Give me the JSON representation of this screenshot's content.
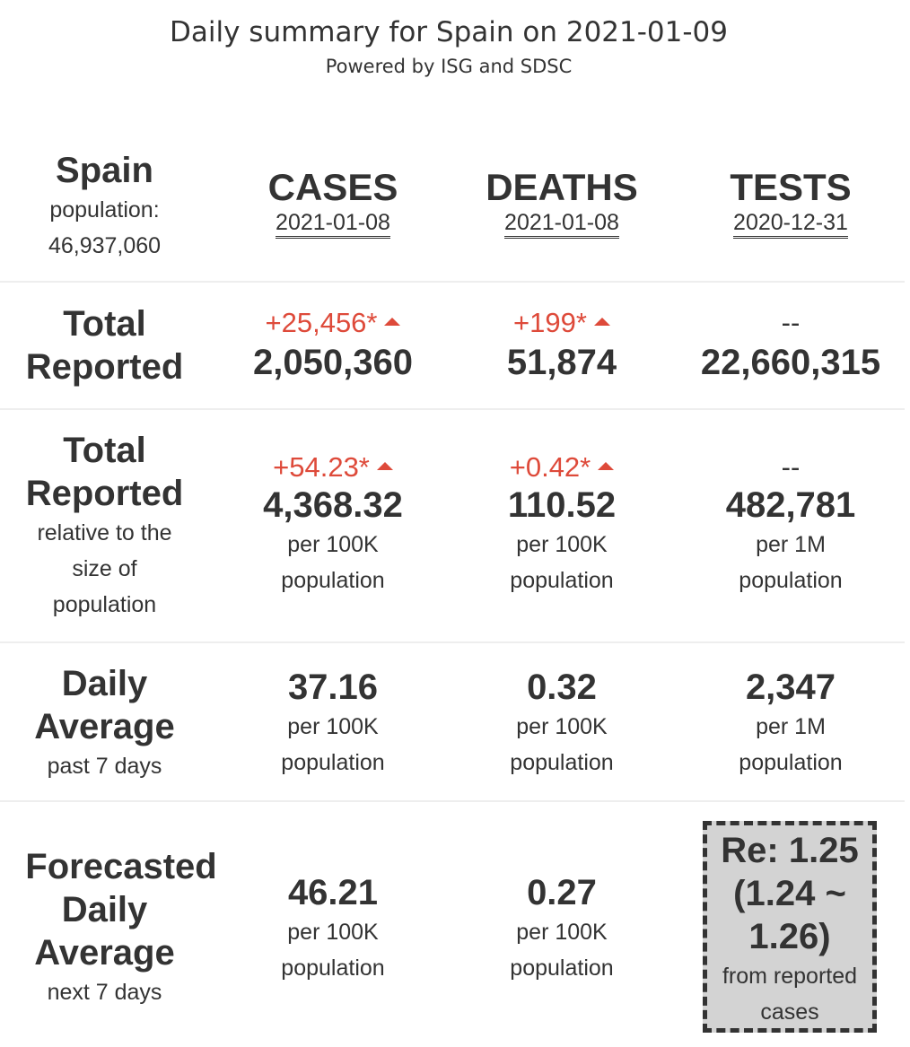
{
  "header": {
    "title": "Daily summary for Spain on 2021-01-09",
    "subtitle": "Powered by ISG and SDSC"
  },
  "region": {
    "name": "Spain",
    "population_label": "population:",
    "population": "46,937,060"
  },
  "columns": [
    {
      "name": "CASES",
      "date": "2021-01-08"
    },
    {
      "name": "DEATHS",
      "date": "2021-01-08"
    },
    {
      "name": "TESTS",
      "date": "2020-12-31"
    }
  ],
  "rows": {
    "total": {
      "label_1": "Total",
      "label_2": "Reported",
      "cases": {
        "delta": "+25,456*",
        "value": "2,050,360"
      },
      "deaths": {
        "delta": "+199*",
        "value": "51,874"
      },
      "tests": {
        "delta": "--",
        "value": "22,660,315"
      }
    },
    "relative": {
      "label_1": "Total",
      "label_2": "Reported",
      "sub_1": "relative to the",
      "sub_2": "size of",
      "sub_3": "population",
      "cases": {
        "delta": "+54.23*",
        "value": "4,368.32",
        "unit_1": "per 100K",
        "unit_2": "population"
      },
      "deaths": {
        "delta": "+0.42*",
        "value": "110.52",
        "unit_1": "per 100K",
        "unit_2": "population"
      },
      "tests": {
        "delta": "--",
        "value": "482,781",
        "unit_1": "per 1M",
        "unit_2": "population"
      }
    },
    "daily": {
      "label_1": "Daily",
      "label_2": "Average",
      "sub_1": "past 7 days",
      "cases": {
        "value": "37.16",
        "unit_1": "per 100K",
        "unit_2": "population"
      },
      "deaths": {
        "value": "0.32",
        "unit_1": "per 100K",
        "unit_2": "population"
      },
      "tests": {
        "value": "2,347",
        "unit_1": "per 1M",
        "unit_2": "population"
      }
    },
    "forecast": {
      "label_1": "Forecasted",
      "label_2": "Daily",
      "label_3": "Average",
      "sub_1": "next 7 days",
      "cases": {
        "value": "46.21",
        "unit_1": "per 100K",
        "unit_2": "population"
      },
      "deaths": {
        "value": "0.27",
        "unit_1": "per 100K",
        "unit_2": "population"
      },
      "re": {
        "line_1": "Re: 1.25",
        "line_2": "(1.24 ~",
        "line_3": "1.26)",
        "caption_1": "from reported",
        "caption_2": "cases"
      }
    }
  },
  "colors": {
    "increase": "#de4a3a",
    "text": "#333333",
    "re_box_bg": "#d3d3d3"
  }
}
